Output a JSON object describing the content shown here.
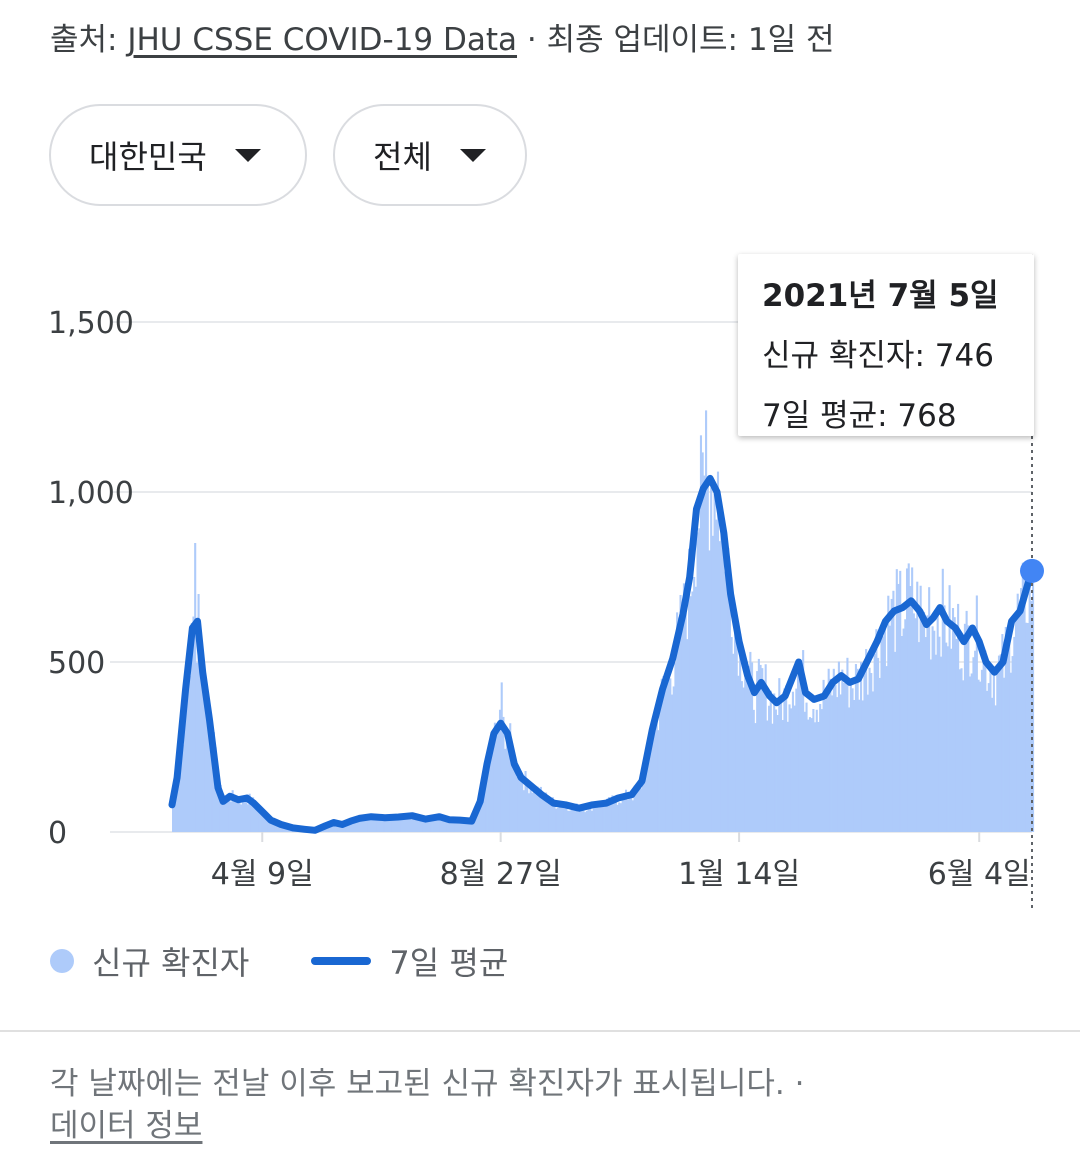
{
  "header": {
    "source_prefix": "출처:",
    "source_link": "JHU CSSE COVID-19 Data",
    "updated": "· 최종 업데이트: 1일 전"
  },
  "filters": {
    "country": "대한민국",
    "region": "전체"
  },
  "tooltip": {
    "date": "2021년 7월 5일",
    "new_cases_label": "신규 확진자: 746",
    "avg_label": "7일 평균: 768"
  },
  "legend": {
    "daily": "신규 확진자",
    "avg": "7일 평균"
  },
  "footer": {
    "note": "각 날짜에는 전날 이후 보고된 신규 확진자가 표시됩니다.  ·",
    "data_info": "데이터 정보"
  },
  "colors": {
    "bars": "#aecbfa",
    "line": "#1967d2",
    "marker": "#4285f4",
    "grid": "#e8eaed"
  },
  "chart_data": {
    "type": "bar",
    "title": "",
    "xlabel": "",
    "ylabel": "",
    "ylim": [
      0,
      1500
    ],
    "yticks": [
      0,
      500,
      1000,
      1500
    ],
    "ytick_labels": [
      "0",
      "500",
      "1,000",
      "1,500"
    ],
    "x_range": [
      "2020-02-16",
      "2021-07-05"
    ],
    "xticks": [
      {
        "date": "2020-04-09",
        "label": "4월 9일"
      },
      {
        "date": "2020-08-27",
        "label": "8월 27일"
      },
      {
        "date": "2021-01-14",
        "label": "1월 14일"
      },
      {
        "date": "2021-06-04",
        "label": "6월 4일"
      }
    ],
    "grid": true,
    "legend_position": "bottom-left",
    "series": [
      {
        "name": "7일 평균",
        "type": "line",
        "points": [
          [
            "2020-02-16",
            80
          ],
          [
            "2020-02-19",
            160
          ],
          [
            "2020-02-24",
            420
          ],
          [
            "2020-02-28",
            600
          ],
          [
            "2020-03-02",
            620
          ],
          [
            "2020-03-05",
            470
          ],
          [
            "2020-03-09",
            330
          ],
          [
            "2020-03-14",
            130
          ],
          [
            "2020-03-17",
            90
          ],
          [
            "2020-03-21",
            105
          ],
          [
            "2020-03-26",
            95
          ],
          [
            "2020-03-31",
            100
          ],
          [
            "2020-04-04",
            85
          ],
          [
            "2020-04-09",
            60
          ],
          [
            "2020-04-14",
            35
          ],
          [
            "2020-04-20",
            22
          ],
          [
            "2020-04-27",
            12
          ],
          [
            "2020-05-04",
            8
          ],
          [
            "2020-05-10",
            5
          ],
          [
            "2020-05-16",
            18
          ],
          [
            "2020-05-21",
            28
          ],
          [
            "2020-05-26",
            22
          ],
          [
            "2020-05-31",
            32
          ],
          [
            "2020-06-05",
            40
          ],
          [
            "2020-06-12",
            45
          ],
          [
            "2020-06-20",
            42
          ],
          [
            "2020-06-28",
            44
          ],
          [
            "2020-07-06",
            48
          ],
          [
            "2020-07-14",
            38
          ],
          [
            "2020-07-22",
            45
          ],
          [
            "2020-07-28",
            36
          ],
          [
            "2020-08-03",
            35
          ],
          [
            "2020-08-10",
            32
          ],
          [
            "2020-08-15",
            90
          ],
          [
            "2020-08-19",
            200
          ],
          [
            "2020-08-23",
            290
          ],
          [
            "2020-08-27",
            320
          ],
          [
            "2020-08-31",
            290
          ],
          [
            "2020-09-04",
            200
          ],
          [
            "2020-09-08",
            160
          ],
          [
            "2020-09-14",
            135
          ],
          [
            "2020-09-20",
            110
          ],
          [
            "2020-09-27",
            85
          ],
          [
            "2020-10-04",
            80
          ],
          [
            "2020-10-12",
            70
          ],
          [
            "2020-10-20",
            80
          ],
          [
            "2020-10-28",
            85
          ],
          [
            "2020-11-04",
            100
          ],
          [
            "2020-11-12",
            110
          ],
          [
            "2020-11-18",
            150
          ],
          [
            "2020-11-24",
            300
          ],
          [
            "2020-11-30",
            420
          ],
          [
            "2020-12-06",
            510
          ],
          [
            "2020-12-12",
            640
          ],
          [
            "2020-12-16",
            750
          ],
          [
            "2020-12-20",
            950
          ],
          [
            "2020-12-24",
            1010
          ],
          [
            "2020-12-28",
            1040
          ],
          [
            "2021-01-01",
            1000
          ],
          [
            "2021-01-05",
            880
          ],
          [
            "2021-01-09",
            700
          ],
          [
            "2021-01-14",
            560
          ],
          [
            "2021-01-19",
            460
          ],
          [
            "2021-01-23",
            410
          ],
          [
            "2021-01-27",
            440
          ],
          [
            "2021-02-01",
            400
          ],
          [
            "2021-02-05",
            380
          ],
          [
            "2021-02-10",
            400
          ],
          [
            "2021-02-14",
            450
          ],
          [
            "2021-02-18",
            500
          ],
          [
            "2021-02-22",
            410
          ],
          [
            "2021-02-27",
            390
          ],
          [
            "2021-03-05",
            400
          ],
          [
            "2021-03-10",
            440
          ],
          [
            "2021-03-15",
            460
          ],
          [
            "2021-03-20",
            440
          ],
          [
            "2021-03-25",
            450
          ],
          [
            "2021-03-30",
            500
          ],
          [
            "2021-04-05",
            560
          ],
          [
            "2021-04-10",
            620
          ],
          [
            "2021-04-15",
            650
          ],
          [
            "2021-04-20",
            660
          ],
          [
            "2021-04-25",
            680
          ],
          [
            "2021-04-30",
            650
          ],
          [
            "2021-05-04",
            610
          ],
          [
            "2021-05-08",
            630
          ],
          [
            "2021-05-12",
            660
          ],
          [
            "2021-05-16",
            620
          ],
          [
            "2021-05-21",
            600
          ],
          [
            "2021-05-26",
            560
          ],
          [
            "2021-05-31",
            600
          ],
          [
            "2021-06-04",
            560
          ],
          [
            "2021-06-08",
            500
          ],
          [
            "2021-06-13",
            470
          ],
          [
            "2021-06-18",
            500
          ],
          [
            "2021-06-23",
            620
          ],
          [
            "2021-06-28",
            650
          ],
          [
            "2021-07-02",
            720
          ],
          [
            "2021-07-05",
            768
          ]
        ]
      },
      {
        "name": "신규 확진자",
        "type": "bar",
        "note": "daily bars fluctuate around the 7-day average",
        "peaks": [
          [
            "2020-02-29",
            850
          ],
          [
            "2020-03-02",
            700
          ],
          [
            "2020-08-27",
            440
          ],
          [
            "2020-12-25",
            1240
          ],
          [
            "2021-01-01",
            1060
          ],
          [
            "2021-04-23",
            790
          ],
          [
            "2021-05-05",
            720
          ],
          [
            "2021-07-05",
            746
          ]
        ]
      }
    ]
  }
}
